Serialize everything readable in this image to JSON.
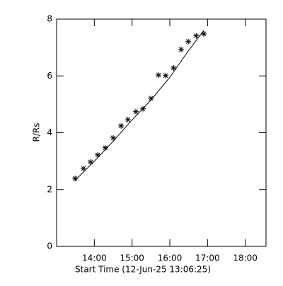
{
  "chart_data": {
    "type": "scatter",
    "x_label": "Start Time (12-Jun-25 13:06:25)",
    "y_label": "R/Rs",
    "x": [
      13.49,
      13.71,
      13.9,
      14.09,
      14.29,
      14.5,
      14.71,
      14.89,
      15.1,
      15.29,
      15.5,
      15.7,
      15.89,
      16.1,
      16.3,
      16.49,
      16.7,
      16.9
    ],
    "values": [
      2.39,
      2.74,
      2.97,
      3.22,
      3.47,
      3.82,
      4.24,
      4.46,
      4.74,
      4.84,
      5.21,
      6.03,
      6.01,
      6.28,
      6.93,
      7.21,
      7.41,
      7.48
    ],
    "fit": {
      "x": [
        13.49,
        14.0,
        14.5,
        15.0,
        15.5,
        16.0,
        16.5,
        16.9
      ],
      "values": [
        2.32,
        3.0,
        3.7,
        4.45,
        5.15,
        5.95,
        6.9,
        7.6
      ]
    },
    "color": "#000000",
    "xlim": [
      13.0,
      18.55
    ],
    "ylim": [
      0,
      8
    ],
    "xticks": [
      {
        "value": 14,
        "label": "14:00"
      },
      {
        "value": 15,
        "label": "15:00"
      },
      {
        "value": 16,
        "label": "16:00"
      },
      {
        "value": 17,
        "label": "17:00"
      },
      {
        "value": 18,
        "label": "18:00"
      }
    ],
    "yticks": [
      0,
      2,
      4,
      6,
      8
    ]
  }
}
